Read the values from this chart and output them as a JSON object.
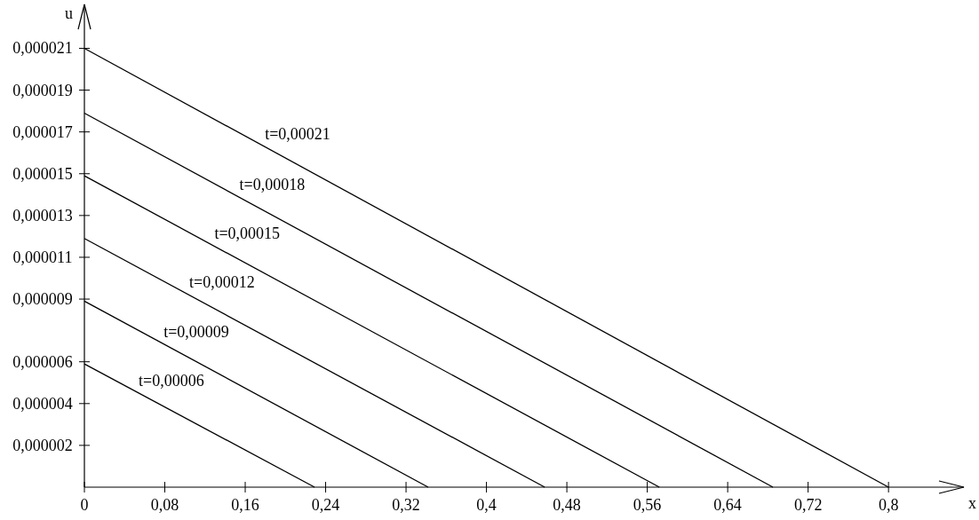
{
  "chart_data": {
    "type": "line",
    "xlabel": "x",
    "ylabel": "u",
    "xlim": [
      0,
      0.875
    ],
    "ylim": [
      0,
      2.31e-05
    ],
    "xticks": [
      0,
      {
        "value": 0.08,
        "label": "0,08"
      },
      {
        "value": 0.16,
        "label": "0,16"
      },
      {
        "value": 0.24,
        "label": "0,24"
      },
      {
        "value": 0.32,
        "label": "0,32"
      },
      {
        "value": 0.4,
        "label": "0,4"
      },
      {
        "value": 0.48,
        "label": "0,48"
      },
      {
        "value": 0.56,
        "label": "0,56"
      },
      {
        "value": 0.64,
        "label": "0,64"
      },
      {
        "value": 0.72,
        "label": "0,72"
      },
      {
        "value": 0.8,
        "label": "0,8"
      }
    ],
    "yticks": [
      {
        "value": 2e-06,
        "label": "0,000002"
      },
      {
        "value": 4e-06,
        "label": "0,000004"
      },
      {
        "value": 6e-06,
        "label": "0,000006"
      },
      {
        "value": 9e-06,
        "label": "0,000009"
      },
      {
        "value": 1.1e-05,
        "label": "0,000011"
      },
      {
        "value": 1.3e-05,
        "label": "0,000013"
      },
      {
        "value": 1.5e-05,
        "label": "0,000015"
      },
      {
        "value": 1.7e-05,
        "label": "0,000017"
      },
      {
        "value": 1.9e-05,
        "label": "0,000019"
      },
      {
        "value": 2.1e-05,
        "label": "0,000021"
      }
    ],
    "grid": false,
    "marker": "none",
    "line_style": "solid",
    "series": [
      {
        "name": "t=0,00021",
        "color": "#000000",
        "x": [
          0,
          0.8
        ],
        "values": [
          2.1e-05,
          0
        ]
      },
      {
        "name": "t=0,00018",
        "color": "#000000",
        "x": [
          0,
          0.685
        ],
        "values": [
          1.79e-05,
          0
        ]
      },
      {
        "name": "t=0,00015",
        "color": "#000000",
        "x": [
          0,
          0.572
        ],
        "values": [
          1.49e-05,
          0
        ]
      },
      {
        "name": "t=0,00012",
        "color": "#000000",
        "x": [
          0,
          0.458
        ],
        "values": [
          1.19e-05,
          0
        ]
      },
      {
        "name": "t=0,00009",
        "color": "#000000",
        "x": [
          0,
          0.342
        ],
        "values": [
          8.9e-06,
          0
        ]
      },
      {
        "name": "t=0,00006",
        "color": "#000000",
        "x": [
          0,
          0.229
        ],
        "values": [
          5.9e-06,
          0
        ]
      }
    ]
  }
}
